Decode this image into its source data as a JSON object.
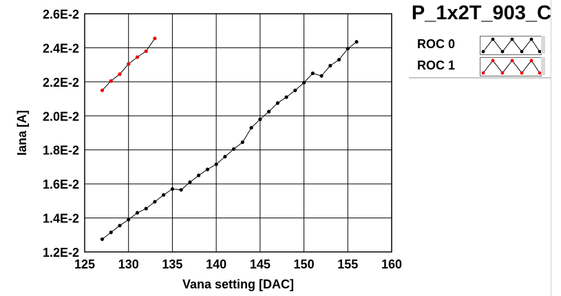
{
  "chart_data": {
    "type": "line",
    "title": "P_1x2T_903_C",
    "xlabel": "Vana setting [DAC]",
    "ylabel": "Iana [A]",
    "xlim": [
      125,
      160
    ],
    "ylim": [
      0.012,
      0.026
    ],
    "xticks": [
      125,
      130,
      135,
      140,
      145,
      150,
      155,
      160
    ],
    "yticks": [
      0.012,
      0.014,
      0.016,
      0.018,
      0.02,
      0.022,
      0.024,
      0.026
    ],
    "xtick_labels": [
      "125",
      "130",
      "135",
      "140",
      "145",
      "150",
      "155",
      "160"
    ],
    "ytick_labels": [
      "1.2E-2",
      "1.4E-2",
      "1.6E-2",
      "1.8E-2",
      "2.0E-2",
      "2.2E-2",
      "2.4E-2",
      "2.6E-2"
    ],
    "grid": true,
    "legend_position": "top-right",
    "series": [
      {
        "name": "ROC 0",
        "color": "#000000",
        "marker_color": "#000000",
        "x": [
          127,
          128,
          129,
          130,
          131,
          132,
          133,
          134,
          135,
          136,
          137,
          138,
          139,
          140,
          141,
          142,
          143,
          144,
          145,
          146,
          147,
          148,
          149,
          150,
          151,
          152,
          153,
          154,
          155,
          156
        ],
        "y": [
          0.01275,
          0.01315,
          0.01355,
          0.0139,
          0.0143,
          0.01455,
          0.01495,
          0.01535,
          0.0157,
          0.01565,
          0.0161,
          0.0165,
          0.01685,
          0.01715,
          0.0176,
          0.01805,
          0.01845,
          0.0193,
          0.0198,
          0.02025,
          0.02075,
          0.0211,
          0.0215,
          0.02195,
          0.0225,
          0.02235,
          0.02295,
          0.0233,
          0.02395,
          0.02435
        ]
      },
      {
        "name": "ROC 1",
        "color": "#000000",
        "marker_color": "#ee0000",
        "x": [
          127,
          128,
          129,
          130,
          131,
          132,
          133
        ],
        "y": [
          0.0215,
          0.02205,
          0.02245,
          0.02305,
          0.02345,
          0.0238,
          0.02455
        ]
      }
    ]
  }
}
